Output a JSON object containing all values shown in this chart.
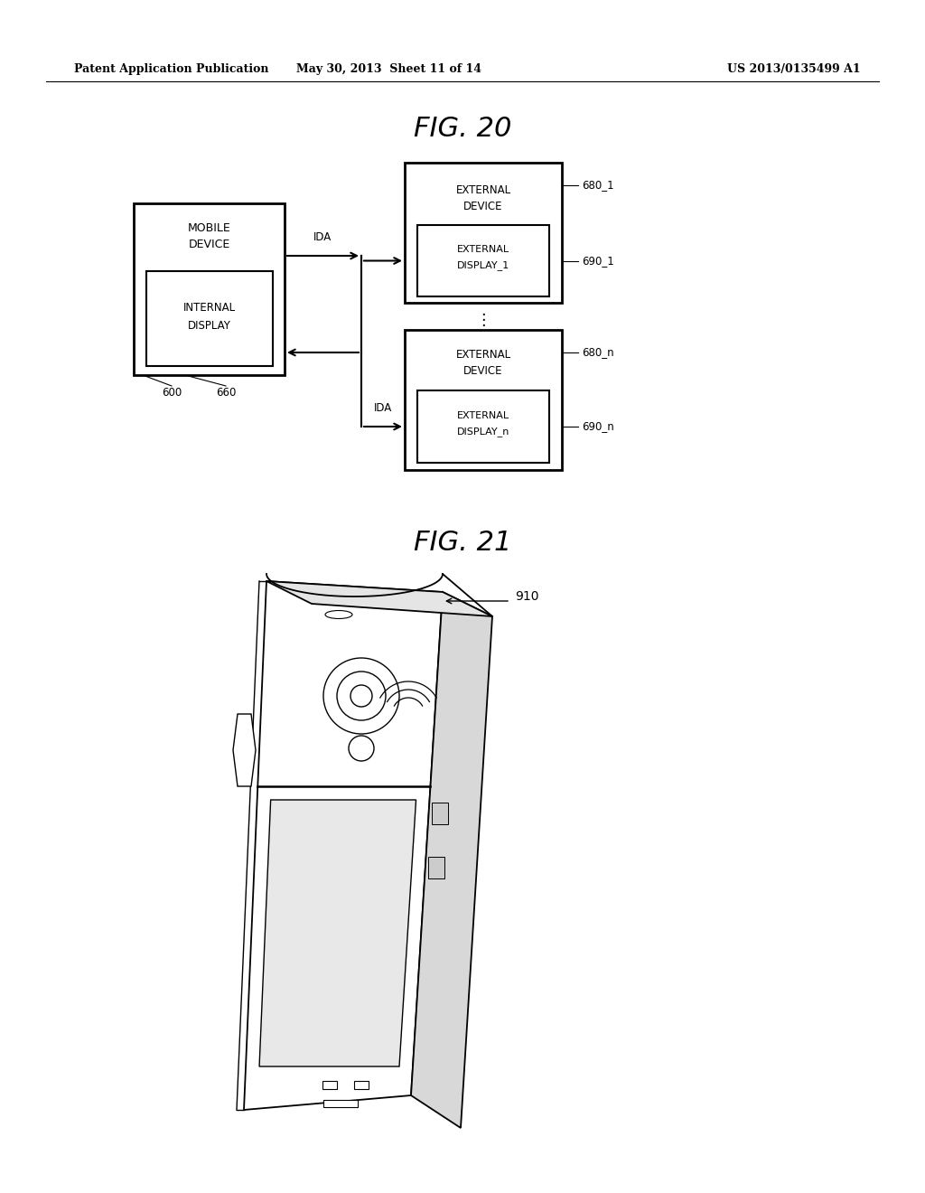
{
  "background_color": "#ffffff",
  "header_left": "Patent Application Publication",
  "header_mid": "May 30, 2013  Sheet 11 of 14",
  "header_right": "US 2013/0135499 A1",
  "fig20_title": "FIG. 20",
  "fig21_title": "FIG. 21",
  "annotation_910": "910",
  "label_600": "600",
  "label_660": "660",
  "label_680_1": "680_1",
  "label_690_1": "690_1",
  "label_680_n": "680_n",
  "label_690_n": "690_n",
  "ida_label": "IDA"
}
